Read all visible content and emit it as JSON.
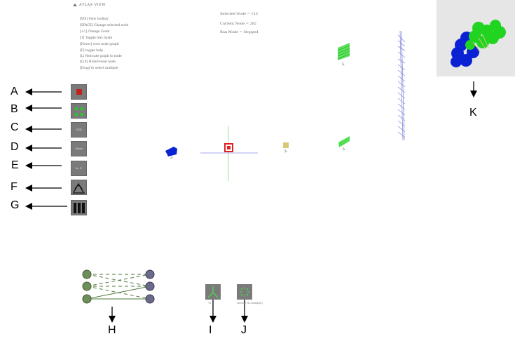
{
  "panel": {
    "title": "ATLAS VIEW",
    "hints": [
      "[WS] View toolbar",
      "[SPACE] Change selected node",
      "[+/-] Change Zoom",
      "[T] Toggle text mode",
      "[Hover] view node graph",
      "[F] toggle help",
      "[L] Relocate graph to node",
      "[Q,E] Hide/reveal node",
      "[Drag] to select multiple"
    ]
  },
  "status": {
    "selected": "Selected Node = 113",
    "current": "Current Node = 282",
    "run_mode": "Run Mode = Stopped"
  },
  "tools": [
    {
      "letter": "A",
      "name": "stop-tool",
      "text": ""
    },
    {
      "letter": "B",
      "name": "grid-tool",
      "text": ""
    },
    {
      "letter": "C",
      "name": "css-tool",
      "text": "CSS"
    },
    {
      "letter": "D",
      "name": "clone-tool",
      "text": "Clone"
    },
    {
      "letter": "E",
      "name": "range-tool",
      "text": "A - Z"
    },
    {
      "letter": "F",
      "name": "curve-tool",
      "text": ""
    },
    {
      "letter": "G",
      "name": "bars-tool",
      "text": ""
    }
  ],
  "bottom_labels": {
    "h": "H",
    "i": "I",
    "j": "J",
    "k": "K",
    "i_caption": "Tri",
    "j_caption": "LAYOUT GL.Nodes(22)"
  },
  "colors": {
    "accent_red": "#c0211a",
    "node_green": "#22cc22",
    "node_blue": "#0a22d4",
    "edge_blue": "#8a8ae0",
    "tool_gray": "#7a7a7a",
    "graph_green": "#4f7a3a"
  }
}
